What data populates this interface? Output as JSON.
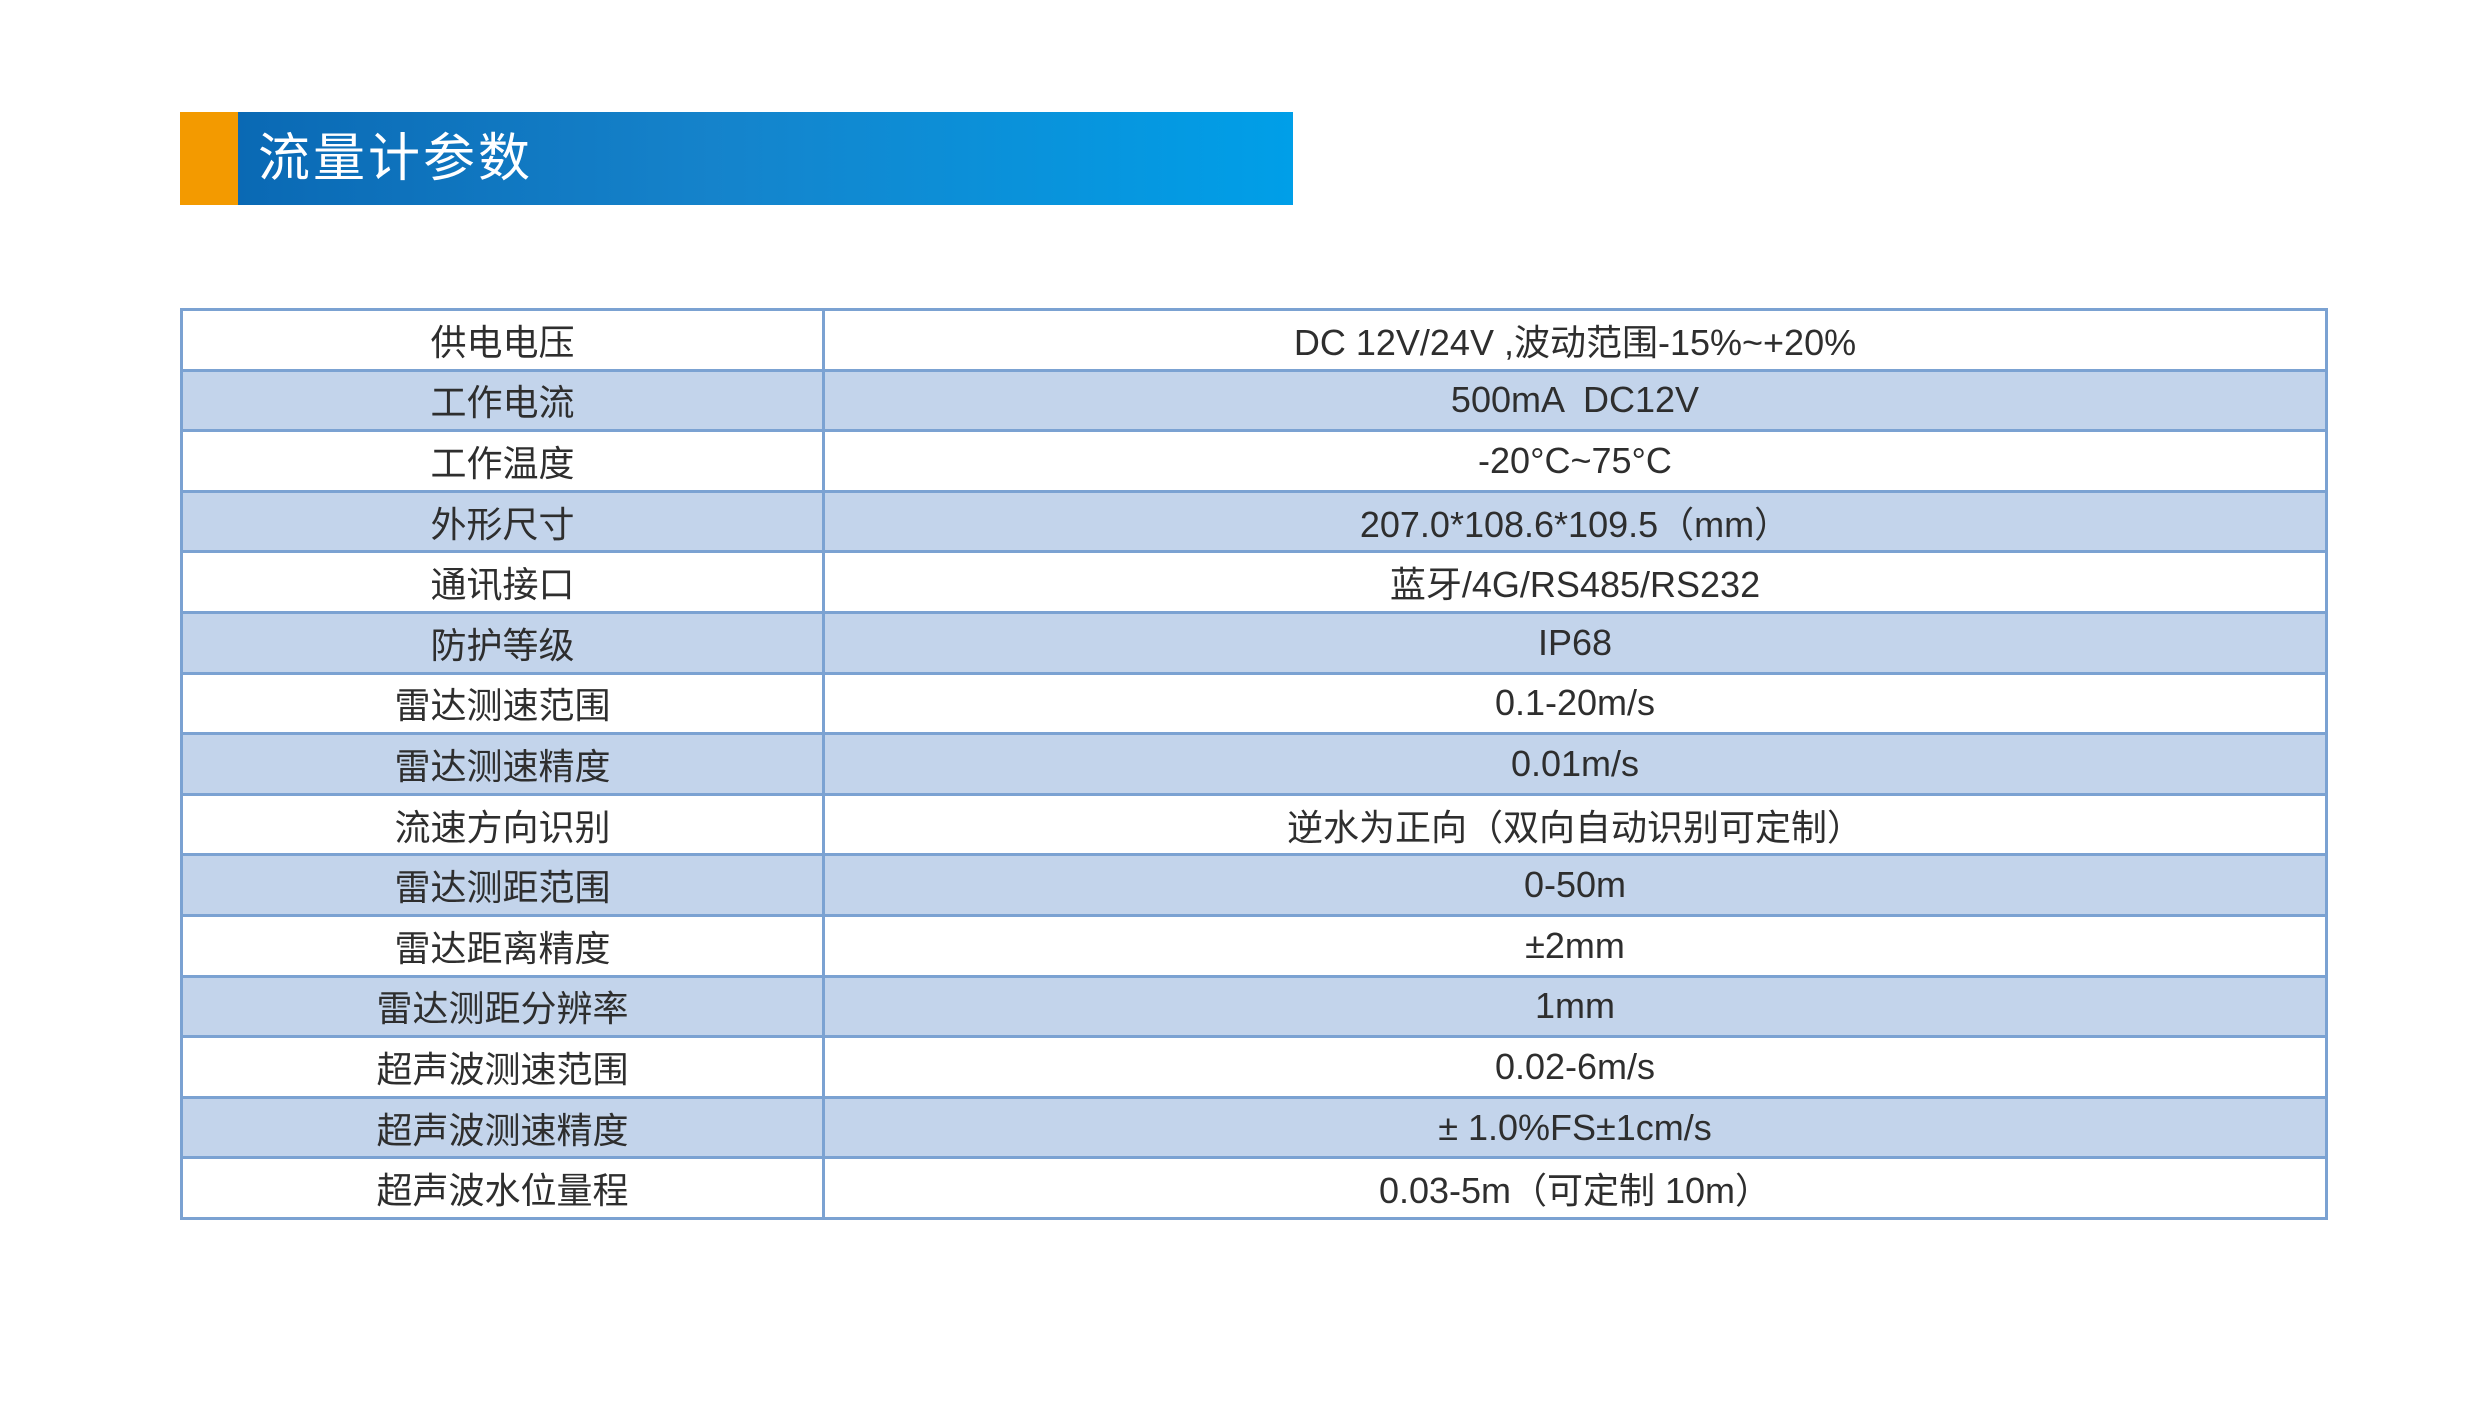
{
  "page": {
    "title": "流量计参数"
  },
  "theme": {
    "accent_orange": "#f39a00",
    "banner_blue_start": "#0a69b4",
    "banner_blue_end": "#009fe8",
    "table_border_blue": "#7ba2d2",
    "row_alt_fill_blue": "#c3d4eb",
    "text_color": "#2e2e2e"
  },
  "table": {
    "rows": [
      {
        "label": "供电电压",
        "value": "DC 12V/24V ,波动范围-15%~+20%"
      },
      {
        "label": "工作电流",
        "value": "500mA  DC12V"
      },
      {
        "label": "工作温度",
        "value": "-20°C~75°C"
      },
      {
        "label": "外形尺寸",
        "value": "207.0*108.6*109.5（mm）"
      },
      {
        "label": "通讯接口",
        "value": "蓝牙/4G/RS485/RS232"
      },
      {
        "label": "防护等级",
        "value": "IP68"
      },
      {
        "label": "雷达测速范围",
        "value": "0.1-20m/s"
      },
      {
        "label": "雷达测速精度",
        "value": "0.01m/s"
      },
      {
        "label": "流速方向识别",
        "value": "逆水为正向（双向自动识别可定制）"
      },
      {
        "label": "雷达测距范围",
        "value": "0-50m"
      },
      {
        "label": "雷达距离精度",
        "value": "±2mm"
      },
      {
        "label": "雷达测距分辨率",
        "value": "1mm"
      },
      {
        "label": "超声波测速范围",
        "value": "0.02-6m/s"
      },
      {
        "label": "超声波测速精度",
        "value": "± 1.0%FS±1cm/s"
      },
      {
        "label": "超声波水位量程",
        "value": "0.03-5m（可定制 10m）"
      }
    ]
  }
}
